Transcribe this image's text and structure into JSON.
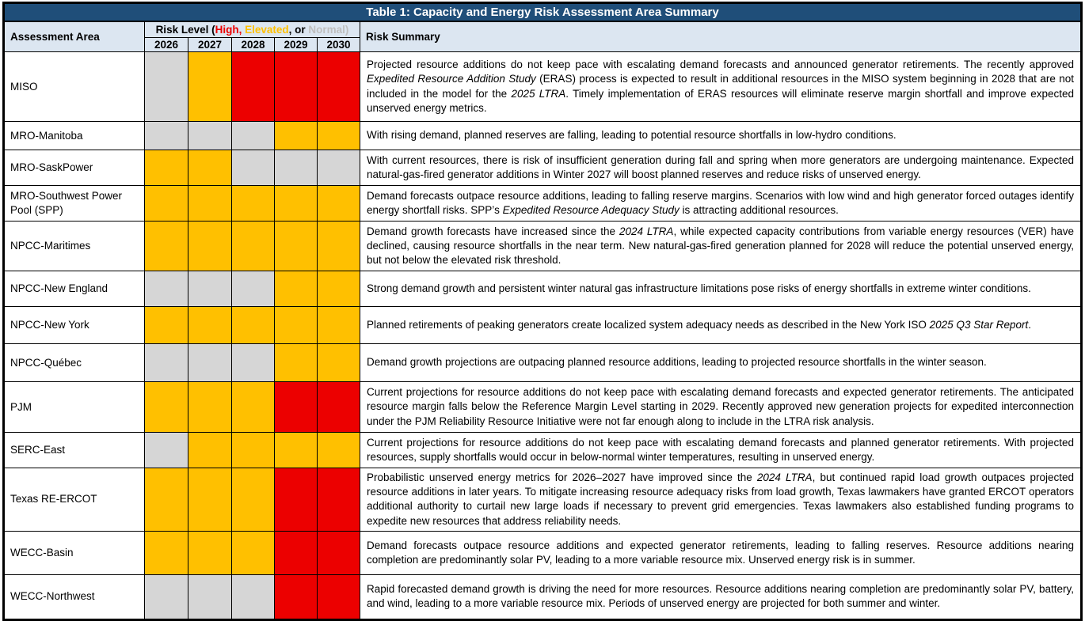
{
  "title": "Table 1: Capacity and Energy Risk Assessment Area Summary",
  "header": {
    "assessment_area": "Assessment Area",
    "risk_level_segments": [
      {
        "t": "Risk Level ("
      },
      {
        "t": "High,",
        "c": "high"
      },
      {
        "t": " "
      },
      {
        "t": "Elevated",
        "c": "elevated"
      },
      {
        "t": ", or ",
        "c": "elevated_comma_black"
      },
      {
        "t": "Normal)",
        "c": "normal"
      }
    ],
    "years": [
      "2026",
      "2027",
      "2028",
      "2029",
      "2030"
    ],
    "risk_summary": "Risk Summary"
  },
  "colors": {
    "title_bg": "#1F4E79",
    "header_bg": "#DCE6F1",
    "high": "#EC0000",
    "elevated": "#FFC000",
    "normal_cell": "#D6D6D6",
    "normal_legend_text": "#BFBFBF"
  },
  "rows": [
    {
      "area": "MISO",
      "risks": [
        "normal",
        "elevated",
        "high",
        "high",
        "high"
      ],
      "summary": [
        {
          "t": "Projected resource additions do not keep pace with escalating demand forecasts and announced generator retirements. The recently approved "
        },
        {
          "t": "Expedited Resource Addition Study",
          "i": true
        },
        {
          "t": " (ERAS) process is expected to result in additional resources in the MISO system beginning in 2028 that are not included in the model for the "
        },
        {
          "t": "2025 LTRA",
          "i": true
        },
        {
          "t": ". Timely implementation of ERAS resources will eliminate reserve margin shortfall and improve expected unserved energy metrics."
        }
      ]
    },
    {
      "area": "MRO-Manitoba",
      "risks": [
        "normal",
        "normal",
        "normal",
        "elevated",
        "elevated"
      ],
      "summary": [
        {
          "t": "With rising demand, planned reserves are falling, leading to potential resource shortfalls in low-hydro conditions."
        }
      ]
    },
    {
      "area": "MRO-SaskPower",
      "risks": [
        "elevated",
        "elevated",
        "normal",
        "normal",
        "normal"
      ],
      "summary": [
        {
          "t": "With current resources, there is risk of insufficient generation during fall and spring when more generators are undergoing maintenance. Expected natural-gas-fired generator additions in Winter 2027 will boost planned reserves and reduce risks of unserved energy."
        }
      ]
    },
    {
      "area": "MRO-Southwest Power Pool (SPP)",
      "risks": [
        "elevated",
        "elevated",
        "elevated",
        "elevated",
        "elevated"
      ],
      "summary": [
        {
          "t": "Demand forecasts outpace resource additions, leading to falling reserve margins. Scenarios with low wind and high generator forced outages identify energy shortfall risks. SPP’s "
        },
        {
          "t": "Expedited Resource Adequacy Study",
          "i": true
        },
        {
          "t": " is attracting additional resources."
        }
      ]
    },
    {
      "area": "NPCC-Maritimes",
      "risks": [
        "elevated",
        "elevated",
        "elevated",
        "elevated",
        "elevated"
      ],
      "summary": [
        {
          "t": "Demand growth forecasts have increased since the "
        },
        {
          "t": "2024 LTRA",
          "i": true
        },
        {
          "t": ", while expected capacity contributions from variable energy resources (VER) have declined, causing resource shortfalls in the near term. New natural-gas-fired generation planned for 2028 will reduce the potential unserved energy, but not below the elevated risk threshold."
        }
      ]
    },
    {
      "area": "NPCC-New England",
      "risks": [
        "normal",
        "normal",
        "normal",
        "elevated",
        "elevated"
      ],
      "summary": [
        {
          "t": "Strong demand growth and persistent winter natural gas infrastructure limitations pose risks of energy shortfalls in extreme winter conditions."
        }
      ]
    },
    {
      "area": "NPCC-New York",
      "risks": [
        "elevated",
        "elevated",
        "elevated",
        "elevated",
        "elevated"
      ],
      "summary": [
        {
          "t": "Planned retirements of peaking generators create localized system adequacy needs as described in the New York ISO "
        },
        {
          "t": "2025 Q3 Star Report",
          "i": true
        },
        {
          "t": "."
        }
      ]
    },
    {
      "area": "NPCC-Québec",
      "risks": [
        "normal",
        "normal",
        "normal",
        "elevated",
        "elevated"
      ],
      "summary": [
        {
          "t": "Demand growth projections are outpacing planned resource additions, leading to projected resource shortfalls in the winter season."
        }
      ]
    },
    {
      "area": "PJM",
      "risks": [
        "elevated",
        "elevated",
        "elevated",
        "high",
        "high"
      ],
      "summary": [
        {
          "t": "Current projections for resource additions do not keep pace with escalating demand forecasts and expected generator retirements. The anticipated resource margin falls below the Reference Margin Level starting in 2029. Recently approved new generation projects for expedited interconnection under the PJM Reliability Resource Initiative were not far enough along to include in the LTRA risk analysis."
        }
      ]
    },
    {
      "area": "SERC-East",
      "risks": [
        "normal",
        "elevated",
        "elevated",
        "elevated",
        "elevated"
      ],
      "summary": [
        {
          "t": "Current projections for resource additions do not keep pace with escalating demand forecasts and planned generator retirements. With projected resources, supply shortfalls would occur in below-normal winter temperatures, resulting in unserved energy."
        }
      ]
    },
    {
      "area": "Texas RE-ERCOT",
      "risks": [
        "elevated",
        "elevated",
        "elevated",
        "high",
        "high"
      ],
      "summary": [
        {
          "t": "Probabilistic unserved energy metrics for 2026–2027 have improved since the "
        },
        {
          "t": "2024 LTRA",
          "i": true
        },
        {
          "t": ", but continued rapid load growth outpaces projected resource additions in later years. To mitigate increasing resource adequacy risks from load growth, Texas lawmakers have granted ERCOT operators additional authority to curtail new large loads if necessary to prevent grid emergencies. Texas lawmakers also established funding programs to expedite new resources that address reliability needs."
        }
      ]
    },
    {
      "area": "WECC-Basin",
      "risks": [
        "elevated",
        "elevated",
        "elevated",
        "high",
        "high"
      ],
      "summary": [
        {
          "t": "Demand forecasts outpace resource additions and expected generator retirements, leading to falling reserves. Resource additions nearing completion are predominantly solar PV, leading to a more variable resource mix. Unserved energy risk is in summer."
        }
      ]
    },
    {
      "area": "WECC-Northwest",
      "risks": [
        "normal",
        "normal",
        "normal",
        "high",
        "high"
      ],
      "summary": [
        {
          "t": "Rapid forecasted demand growth is driving the need for more resources. Resource additions nearing completion are predominantly solar PV, battery, and wind, leading to a more variable resource mix. Periods of unserved energy are projected for both summer and winter."
        }
      ]
    }
  ]
}
